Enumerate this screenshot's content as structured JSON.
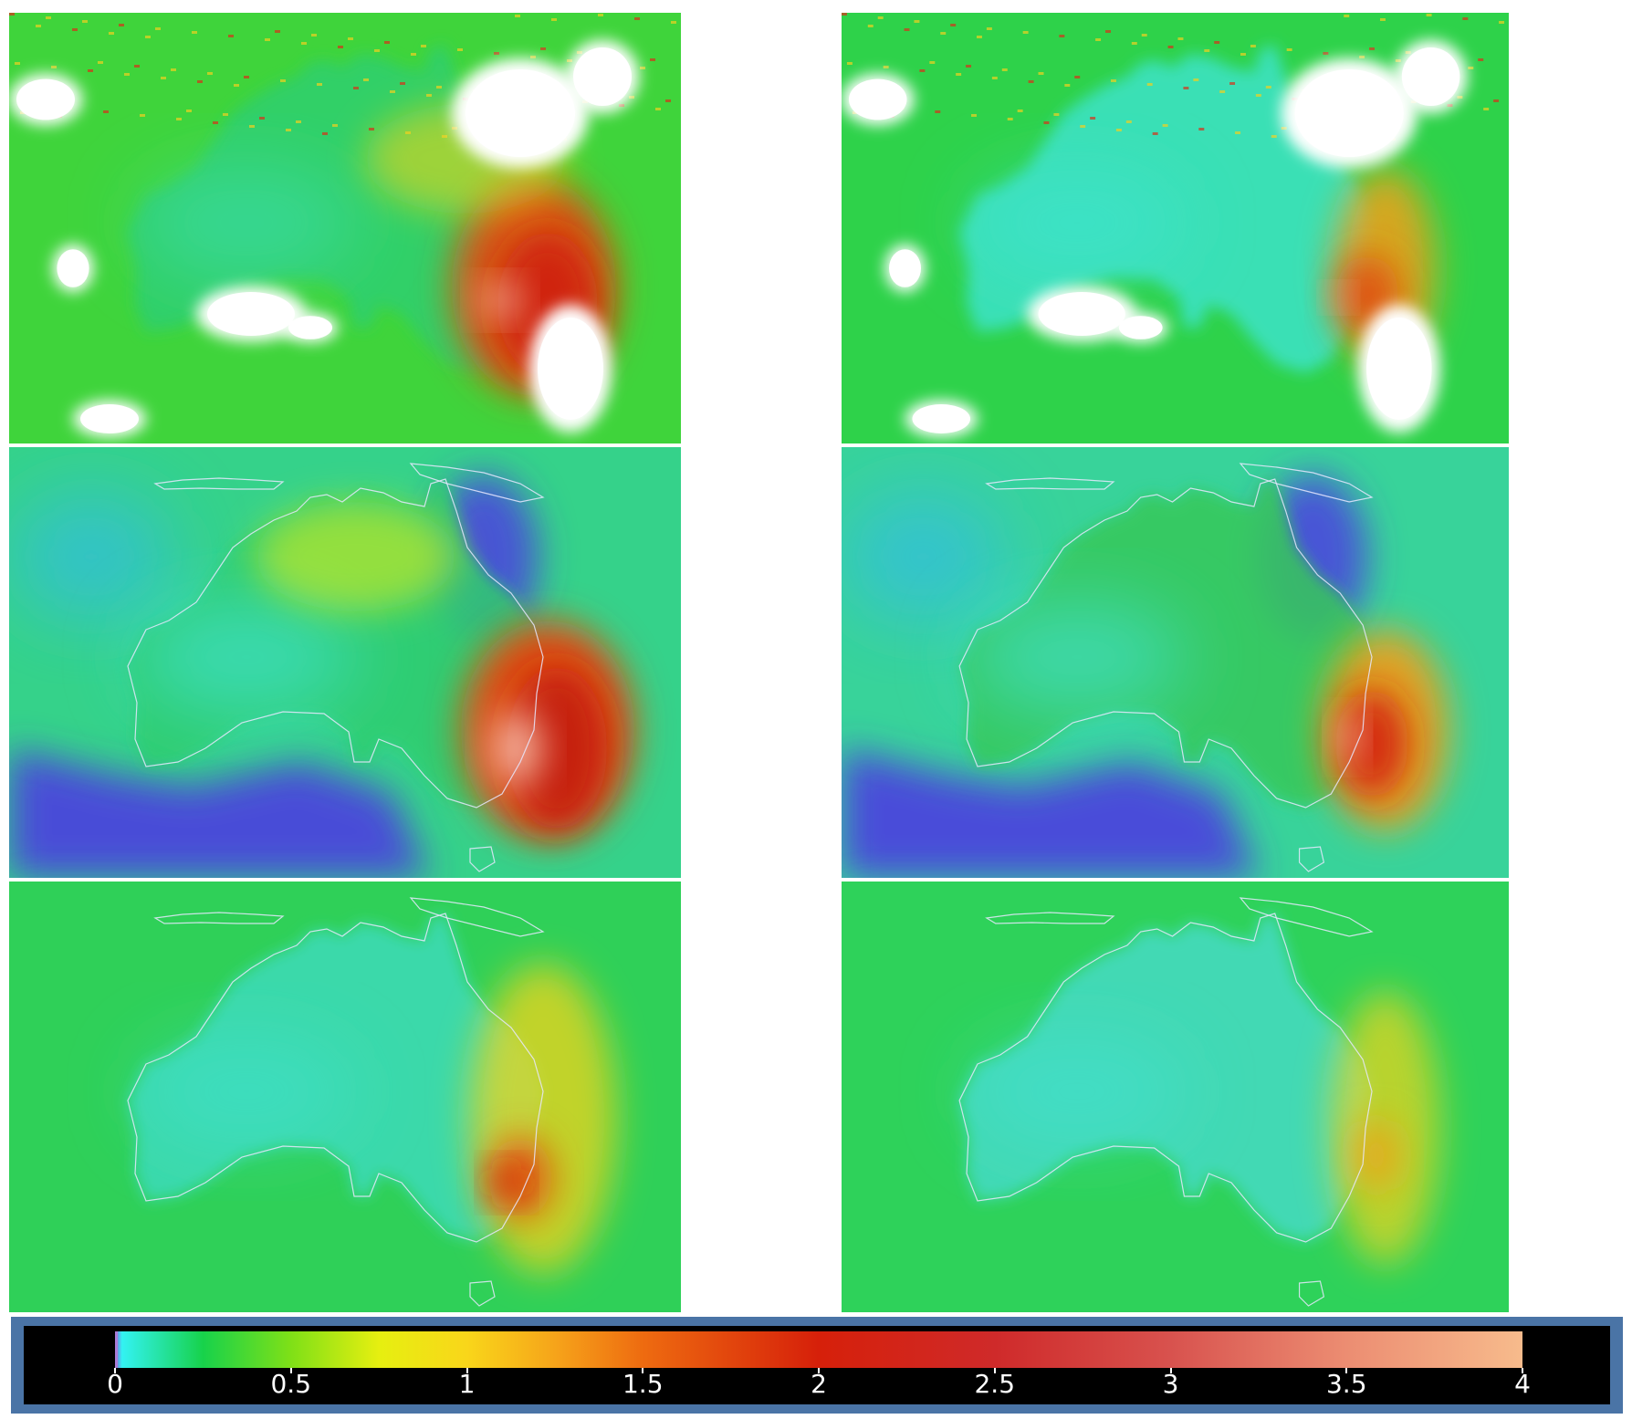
{
  "panels": [
    {
      "id": "p-1-left",
      "row": 1,
      "col": "left",
      "style": "satellite"
    },
    {
      "id": "p-1-right",
      "row": 1,
      "col": "right",
      "style": "satellite-weak"
    },
    {
      "id": "p-2-left",
      "row": 2,
      "col": "left",
      "style": "model-strong"
    },
    {
      "id": "p-2-right",
      "row": 2,
      "col": "right",
      "style": "model-medium"
    },
    {
      "id": "p-3-left",
      "row": 3,
      "col": "left",
      "style": "smooth-strong"
    },
    {
      "id": "p-3-right",
      "row": 3,
      "col": "right",
      "style": "smooth-weak"
    }
  ],
  "colorbar": {
    "min": 0,
    "max": 4,
    "ticks": [
      "0",
      "0.5",
      "1",
      "1.5",
      "2",
      "2.5",
      "3",
      "3.5",
      "4"
    ],
    "tick_values": [
      0,
      0.5,
      1,
      1.5,
      2,
      2.5,
      3,
      3.5,
      4
    ],
    "stops": [
      {
        "v": 0.0,
        "color": "#7f66e0"
      },
      {
        "v": 0.02,
        "color": "#33f2f2"
      },
      {
        "v": 0.25,
        "color": "#17d24b"
      },
      {
        "v": 0.5,
        "color": "#7fe017"
      },
      {
        "v": 0.75,
        "color": "#e6ef10"
      },
      {
        "v": 1.0,
        "color": "#f9d61a"
      },
      {
        "v": 1.25,
        "color": "#f6a41a"
      },
      {
        "v": 1.5,
        "color": "#ee6b10"
      },
      {
        "v": 2.0,
        "color": "#d6200a"
      },
      {
        "v": 2.5,
        "color": "#cf2a2a"
      },
      {
        "v": 3.0,
        "color": "#d8524e"
      },
      {
        "v": 3.5,
        "color": "#ec8d72"
      },
      {
        "v": 4.0,
        "color": "#f7bb8c"
      }
    ]
  }
}
